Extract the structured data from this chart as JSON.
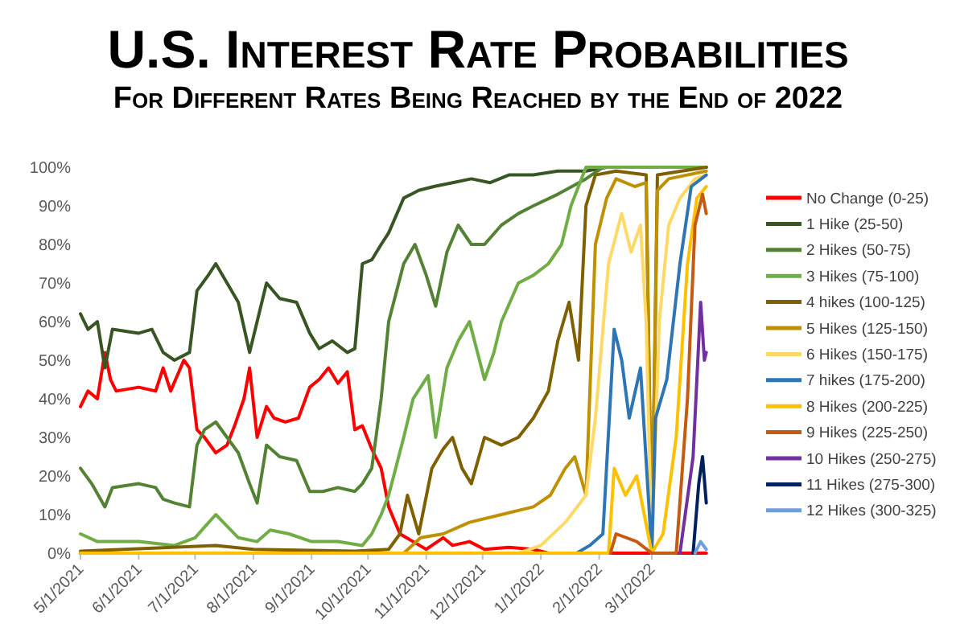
{
  "chart_data": {
    "type": "line",
    "title": "U.S. Interest Rate Probabilities",
    "subtitle": "For Different Rates Being Reached by the End of 2022",
    "xlim": [
      "2021-05-01",
      "2022-03-31"
    ],
    "xticks": [
      {
        "value": "2021-05-01",
        "label": "5/1/2021"
      },
      {
        "value": "2021-06-01",
        "label": "6/1/2021"
      },
      {
        "value": "2021-07-01",
        "label": "7/1/2021"
      },
      {
        "value": "2021-08-01",
        "label": "8/1/2021"
      },
      {
        "value": "2021-09-01",
        "label": "9/1/2021"
      },
      {
        "value": "2021-10-01",
        "label": "10/1/2021"
      },
      {
        "value": "2021-11-01",
        "label": "11/1/2021"
      },
      {
        "value": "2021-12-01",
        "label": "12/1/2021"
      },
      {
        "value": "2022-01-01",
        "label": "1/1/2022"
      },
      {
        "value": "2022-02-01",
        "label": "2/1/2022"
      },
      {
        "value": "2022-03-01",
        "label": "3/1/2022"
      }
    ],
    "ylim": [
      0,
      100
    ],
    "yticks": [
      {
        "value": 0,
        "label": "0%"
      },
      {
        "value": 10,
        "label": "10%"
      },
      {
        "value": 20,
        "label": "20%"
      },
      {
        "value": 30,
        "label": "30%"
      },
      {
        "value": 40,
        "label": "40%"
      },
      {
        "value": 50,
        "label": "50%"
      },
      {
        "value": 60,
        "label": "60%"
      },
      {
        "value": 70,
        "label": "70%"
      },
      {
        "value": 80,
        "label": "80%"
      },
      {
        "value": 90,
        "label": "90%"
      },
      {
        "value": 100,
        "label": "100%"
      }
    ],
    "legend": "right",
    "series": [
      {
        "name": "No Change (0-25)",
        "color": "#ff0000",
        "x": [
          "2021-05-01",
          "2021-05-05",
          "2021-05-10",
          "2021-05-14",
          "2021-05-17",
          "2021-05-20",
          "2021-06-01",
          "2021-06-10",
          "2021-06-14",
          "2021-06-18",
          "2021-06-25",
          "2021-06-28",
          "2021-07-02",
          "2021-07-06",
          "2021-07-12",
          "2021-07-18",
          "2021-07-22",
          "2021-07-27",
          "2021-07-30",
          "2021-08-03",
          "2021-08-08",
          "2021-08-12",
          "2021-08-18",
          "2021-08-25",
          "2021-08-31",
          "2021-09-05",
          "2021-09-10",
          "2021-09-15",
          "2021-09-20",
          "2021-09-24",
          "2021-09-28",
          "2021-10-03",
          "2021-10-08",
          "2021-10-12",
          "2021-10-18",
          "2021-10-25",
          "2021-11-01",
          "2021-11-10",
          "2021-11-15",
          "2021-11-24",
          "2021-12-02",
          "2021-12-15",
          "2021-12-28",
          "2022-01-05",
          "2022-03-30"
        ],
        "values": [
          38,
          42,
          40,
          52,
          45,
          42,
          43,
          42,
          48,
          42,
          50,
          48,
          32,
          30,
          26,
          28,
          33,
          40,
          48,
          30,
          38,
          35,
          34,
          35,
          43,
          45,
          48,
          44,
          47,
          32,
          33,
          27,
          22,
          12,
          5,
          3,
          1,
          4,
          2,
          3,
          1,
          1.5,
          1,
          0,
          0
        ]
      },
      {
        "name": "1 Hike (25-50)",
        "color": "#375623",
        "x": [
          "2021-05-01",
          "2021-05-05",
          "2021-05-10",
          "2021-05-14",
          "2021-05-18",
          "2021-06-01",
          "2021-06-08",
          "2021-06-14",
          "2021-06-20",
          "2021-06-28",
          "2021-07-02",
          "2021-07-08",
          "2021-07-12",
          "2021-07-18",
          "2021-07-24",
          "2021-07-30",
          "2021-08-03",
          "2021-08-08",
          "2021-08-15",
          "2021-08-24",
          "2021-08-31",
          "2021-09-05",
          "2021-09-12",
          "2021-09-20",
          "2021-09-24",
          "2021-09-28",
          "2021-10-03",
          "2021-10-08",
          "2021-10-12",
          "2021-10-20",
          "2021-10-28",
          "2021-11-05",
          "2021-11-15",
          "2021-11-25",
          "2021-12-05",
          "2021-12-15",
          "2021-12-28",
          "2022-01-10",
          "2022-01-25",
          "2022-02-05",
          "2022-03-30"
        ],
        "values": [
          62,
          58,
          60,
          48,
          58,
          57,
          58,
          52,
          50,
          52,
          68,
          72,
          75,
          70,
          65,
          52,
          60,
          70,
          66,
          65,
          57,
          53,
          55,
          52,
          53,
          75,
          76,
          80,
          83,
          92,
          94,
          95,
          96,
          97,
          96,
          98,
          98,
          99,
          99,
          100,
          100
        ]
      },
      {
        "name": "2 Hikes (50-75)",
        "color": "#548235",
        "x": [
          "2021-05-01",
          "2021-05-07",
          "2021-05-14",
          "2021-05-18",
          "2021-06-01",
          "2021-06-10",
          "2021-06-14",
          "2021-06-20",
          "2021-06-28",
          "2021-07-02",
          "2021-07-06",
          "2021-07-12",
          "2021-07-18",
          "2021-07-24",
          "2021-07-30",
          "2021-08-03",
          "2021-08-08",
          "2021-08-15",
          "2021-08-24",
          "2021-08-31",
          "2021-09-07",
          "2021-09-15",
          "2021-09-24",
          "2021-09-28",
          "2021-10-03",
          "2021-10-08",
          "2021-10-12",
          "2021-10-20",
          "2021-10-26",
          "2021-11-01",
          "2021-11-06",
          "2021-11-12",
          "2021-11-18",
          "2021-11-25",
          "2021-12-02",
          "2021-12-11",
          "2021-12-20",
          "2021-12-28",
          "2022-01-10",
          "2022-01-25",
          "2022-02-03",
          "2022-03-30"
        ],
        "values": [
          22,
          18,
          12,
          17,
          18,
          17,
          14,
          13,
          12,
          28,
          32,
          34,
          30,
          26,
          18,
          13,
          28,
          25,
          24,
          16,
          16,
          17,
          16,
          18,
          22,
          40,
          60,
          75,
          80,
          72,
          64,
          78,
          85,
          80,
          80,
          85,
          88,
          90,
          93,
          97,
          100,
          100
        ]
      },
      {
        "name": "3 Hikes (75-100)",
        "color": "#70ad47",
        "x": [
          "2021-05-01",
          "2021-05-10",
          "2021-06-01",
          "2021-06-20",
          "2021-07-01",
          "2021-07-12",
          "2021-07-18",
          "2021-07-24",
          "2021-08-03",
          "2021-08-10",
          "2021-08-20",
          "2021-09-01",
          "2021-09-15",
          "2021-09-28",
          "2021-10-03",
          "2021-10-08",
          "2021-10-12",
          "2021-10-20",
          "2021-10-25",
          "2021-11-02",
          "2021-11-06",
          "2021-11-12",
          "2021-11-18",
          "2021-11-24",
          "2021-12-02",
          "2021-12-07",
          "2021-12-11",
          "2021-12-20",
          "2021-12-28",
          "2022-01-05",
          "2022-01-12",
          "2022-01-17",
          "2022-01-25",
          "2022-03-30"
        ],
        "values": [
          5,
          3,
          3,
          2,
          4,
          10,
          7,
          4,
          3,
          6,
          5,
          3,
          3,
          2,
          5,
          10,
          15,
          30,
          40,
          46,
          30,
          48,
          55,
          60,
          45,
          52,
          60,
          70,
          72,
          75,
          80,
          90,
          100,
          100
        ]
      },
      {
        "name": "4 hikes (100-125)",
        "color": "#7f6000",
        "x": [
          "2021-05-01",
          "2021-07-12",
          "2021-08-01",
          "2021-09-24",
          "2021-10-12",
          "2021-10-18",
          "2021-10-22",
          "2021-10-28",
          "2021-11-04",
          "2021-11-10",
          "2021-11-15",
          "2021-11-20",
          "2021-11-25",
          "2021-12-02",
          "2021-12-11",
          "2021-12-20",
          "2021-12-28",
          "2022-01-05",
          "2022-01-10",
          "2022-01-16",
          "2022-01-21",
          "2022-01-25",
          "2022-01-30",
          "2022-02-10",
          "2022-02-26",
          "2022-03-01",
          "2022-03-04",
          "2022-03-30"
        ],
        "values": [
          0.5,
          2,
          1,
          0.5,
          1,
          5,
          15,
          5,
          22,
          27,
          30,
          22,
          18,
          30,
          28,
          30,
          35,
          42,
          55,
          65,
          50,
          90,
          98,
          99,
          98,
          2,
          98,
          100
        ]
      },
      {
        "name": "5 Hikes (125-150)",
        "color": "#bf9000",
        "x": [
          "2021-05-01",
          "2021-10-20",
          "2021-10-29",
          "2021-11-10",
          "2021-11-24",
          "2021-12-11",
          "2021-12-28",
          "2022-01-06",
          "2022-01-14",
          "2022-01-19",
          "2022-01-25",
          "2022-01-30",
          "2022-02-05",
          "2022-02-10",
          "2022-02-20",
          "2022-02-26",
          "2022-03-01",
          "2022-03-04",
          "2022-03-10",
          "2022-03-30"
        ],
        "values": [
          0,
          0,
          4,
          5,
          8,
          10,
          12,
          15,
          22,
          25,
          15,
          80,
          92,
          97,
          95,
          96,
          1,
          94,
          97,
          99
        ]
      },
      {
        "name": "6 Hikes (150-175)",
        "color": "#ffd966",
        "x": [
          "2021-05-01",
          "2021-12-20",
          "2022-01-01",
          "2022-01-14",
          "2022-01-25",
          "2022-01-30",
          "2022-02-06",
          "2022-02-13",
          "2022-02-18",
          "2022-02-23",
          "2022-02-26",
          "2022-03-01",
          "2022-03-05",
          "2022-03-10",
          "2022-03-16",
          "2022-03-24",
          "2022-03-30"
        ],
        "values": [
          0,
          0,
          2,
          8,
          15,
          35,
          75,
          88,
          78,
          85,
          60,
          0,
          60,
          85,
          92,
          97,
          98
        ]
      },
      {
        "name": "7 hikes (175-200)",
        "color": "#2e75b6",
        "x": [
          "2021-05-01",
          "2022-01-20",
          "2022-01-27",
          "2022-02-03",
          "2022-02-09",
          "2022-02-13",
          "2022-02-17",
          "2022-02-23",
          "2022-03-01",
          "2022-03-03",
          "2022-03-09",
          "2022-03-16",
          "2022-03-22",
          "2022-03-30"
        ],
        "values": [
          0,
          0,
          2,
          5,
          58,
          50,
          35,
          48,
          0,
          35,
          45,
          75,
          95,
          98
        ]
      },
      {
        "name": "8 Hikes (200-225)",
        "color": "#ffc000",
        "x": [
          "2021-05-01",
          "2022-02-06",
          "2022-02-09",
          "2022-02-15",
          "2022-02-21",
          "2022-03-01",
          "2022-03-07",
          "2022-03-14",
          "2022-03-20",
          "2022-03-25",
          "2022-03-30"
        ],
        "values": [
          0,
          0,
          22,
          15,
          20,
          0,
          5,
          30,
          75,
          92,
          95
        ]
      },
      {
        "name": "9 Hikes (225-250)",
        "color": "#c55a11",
        "x": [
          "2022-02-07",
          "2022-02-10",
          "2022-02-21",
          "2022-03-01",
          "2022-03-14",
          "2022-03-20",
          "2022-03-24",
          "2022-03-28",
          "2022-03-30"
        ],
        "values": [
          0,
          5,
          3,
          0,
          0,
          40,
          85,
          93,
          88
        ]
      },
      {
        "name": "10 Hikes (250-275)",
        "color": "#7030a0",
        "x": [
          "2022-03-16",
          "2022-03-23",
          "2022-03-27",
          "2022-03-29",
          "2022-03-30"
        ],
        "values": [
          0,
          25,
          65,
          50,
          52
        ]
      },
      {
        "name": "11 Hikes (275-300)",
        "color": "#002060",
        "x": [
          "2022-03-23",
          "2022-03-26",
          "2022-03-28",
          "2022-03-30"
        ],
        "values": [
          0,
          18,
          25,
          13
        ]
      },
      {
        "name": "12 Hikes (300-325)",
        "color": "#6f9fd8",
        "x": [
          "2022-03-24",
          "2022-03-27",
          "2022-03-30"
        ],
        "values": [
          0,
          3,
          1
        ]
      }
    ]
  }
}
